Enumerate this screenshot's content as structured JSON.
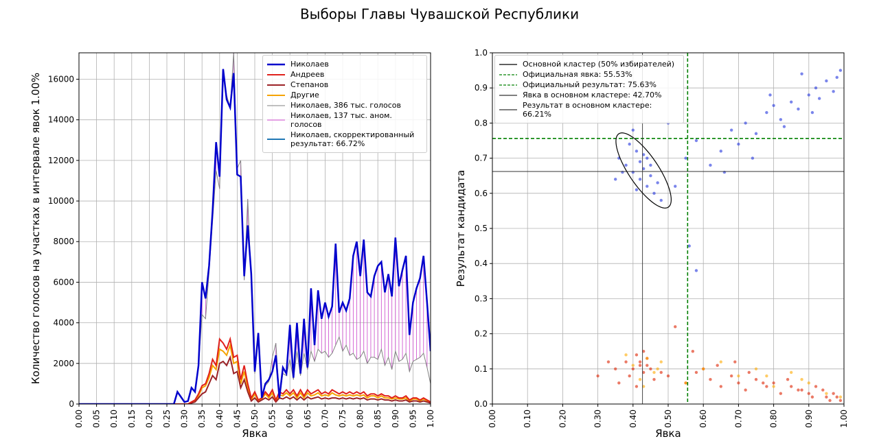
{
  "title": "Выборы Главы Чувашской Республики",
  "chart_data": [
    {
      "type": "line",
      "xlabel": "Явка",
      "ylabel": "Количество голосов на участках в интервале явок 1.00%",
      "xlim": [
        0,
        1
      ],
      "ylim": [
        0,
        17300
      ],
      "grid": true,
      "xticks": [
        {
          "value": 0,
          "label": "0.00"
        },
        {
          "value": 0.05,
          "label": "0.05"
        },
        {
          "value": 0.1,
          "label": "0.10"
        },
        {
          "value": 0.15,
          "label": "0.15"
        },
        {
          "value": 0.2,
          "label": "0.20"
        },
        {
          "value": 0.25,
          "label": "0.25"
        },
        {
          "value": 0.3,
          "label": "0.30"
        },
        {
          "value": 0.35,
          "label": "0.35"
        },
        {
          "value": 0.4,
          "label": "0.40"
        },
        {
          "value": 0.45,
          "label": "0.45"
        },
        {
          "value": 0.5,
          "label": "0.50"
        },
        {
          "value": 0.55,
          "label": "0.55"
        },
        {
          "value": 0.6,
          "label": "0.60"
        },
        {
          "value": 0.65,
          "label": "0.65"
        },
        {
          "value": 0.7,
          "label": "0.70"
        },
        {
          "value": 0.75,
          "label": "0.75"
        },
        {
          "value": 0.8,
          "label": "0.80"
        },
        {
          "value": 0.85,
          "label": "0.85"
        },
        {
          "value": 0.9,
          "label": "0.90"
        },
        {
          "value": 0.95,
          "label": "0.95"
        },
        {
          "value": 1,
          "label": "1.00"
        }
      ],
      "yticks": [
        0,
        2000,
        4000,
        6000,
        8000,
        10000,
        12000,
        14000,
        16000
      ],
      "x": [
        0,
        0.27,
        0.28,
        0.29,
        0.3,
        0.31,
        0.32,
        0.33,
        0.34,
        0.35,
        0.36,
        0.37,
        0.38,
        0.39,
        0.4,
        0.41,
        0.42,
        0.43,
        0.44,
        0.45,
        0.46,
        0.47,
        0.48,
        0.49,
        0.5,
        0.51,
        0.52,
        0.53,
        0.54,
        0.55,
        0.56,
        0.57,
        0.58,
        0.59,
        0.6,
        0.61,
        0.62,
        0.63,
        0.64,
        0.65,
        0.66,
        0.67,
        0.68,
        0.69,
        0.7,
        0.71,
        0.72,
        0.73,
        0.74,
        0.75,
        0.76,
        0.77,
        0.78,
        0.79,
        0.8,
        0.81,
        0.82,
        0.83,
        0.84,
        0.85,
        0.86,
        0.87,
        0.88,
        0.89,
        0.9,
        0.91,
        0.92,
        0.93,
        0.94,
        0.95,
        0.96,
        0.97,
        0.98,
        0.99,
        1
      ],
      "series": [
        {
          "name": "Николаев",
          "color": "#0000cc",
          "width": 2.5,
          "values": [
            0,
            0,
            600,
            350,
            100,
            150,
            800,
            600,
            1900,
            6000,
            5200,
            6800,
            9500,
            12900,
            11200,
            16500,
            15000,
            14600,
            16300,
            11300,
            11200,
            6300,
            8800,
            6400,
            1600,
            3500,
            300,
            1000,
            1200,
            1600,
            2400,
            300,
            1800,
            1500,
            3900,
            1300,
            4000,
            1500,
            4200,
            1800,
            5700,
            2900,
            5600,
            4200,
            5000,
            4300,
            4800,
            7900,
            4500,
            5000,
            4600,
            5200,
            7300,
            8000,
            6300,
            8100,
            5500,
            5300,
            6300,
            6800,
            7000,
            5500,
            6400,
            5300,
            8200,
            5800,
            6600,
            7300,
            3400,
            5000,
            5700,
            6200,
            7300,
            5000,
            2600
          ]
        },
        {
          "name": "Андреев",
          "color": "#e0201b",
          "width": 2,
          "values": [
            0,
            0,
            0,
            0,
            0,
            0,
            100,
            200,
            500,
            900,
            1000,
            1500,
            2200,
            1900,
            3200,
            3000,
            2700,
            3200,
            2300,
            2400,
            1200,
            1900,
            1000,
            300,
            600,
            200,
            300,
            600,
            400,
            700,
            200,
            600,
            500,
            700,
            500,
            700,
            400,
            700,
            400,
            700,
            500,
            600,
            700,
            500,
            600,
            500,
            700,
            600,
            500,
            600,
            500,
            600,
            500,
            600,
            500,
            600,
            400,
            500,
            500,
            400,
            500,
            400,
            400,
            300,
            400,
            300,
            300,
            400,
            200,
            300,
            300,
            200,
            300,
            200,
            100
          ]
        },
        {
          "name": "Степанов",
          "color": "#9b2226",
          "width": 2,
          "values": [
            0,
            0,
            0,
            0,
            0,
            0,
            50,
            100,
            300,
            500,
            600,
            1000,
            1400,
            1200,
            2000,
            2100,
            1900,
            2300,
            1500,
            1600,
            800,
            1200,
            600,
            150,
            300,
            100,
            200,
            300,
            200,
            350,
            100,
            300,
            250,
            350,
            250,
            350,
            200,
            350,
            200,
            350,
            250,
            300,
            350,
            250,
            300,
            250,
            300,
            300,
            250,
            300,
            250,
            300,
            250,
            300,
            250,
            300,
            200,
            250,
            250,
            200,
            250,
            200,
            200,
            150,
            200,
            150,
            150,
            200,
            100,
            150,
            150,
            100,
            150,
            100,
            50
          ]
        },
        {
          "name": "Другие",
          "color": "#f5a300",
          "width": 2,
          "values": [
            0,
            0,
            0,
            0,
            0,
            0,
            100,
            150,
            400,
            800,
            900,
            1300,
            1900,
            1700,
            2700,
            2600,
            2400,
            2900,
            2000,
            2100,
            1000,
            1600,
            800,
            200,
            500,
            150,
            250,
            500,
            300,
            550,
            150,
            450,
            400,
            550,
            400,
            550,
            300,
            550,
            300,
            550,
            400,
            450,
            550,
            400,
            450,
            400,
            550,
            450,
            400,
            450,
            400,
            450,
            400,
            450,
            400,
            450,
            300,
            400,
            400,
            300,
            400,
            300,
            300,
            250,
            300,
            250,
            250,
            300,
            150,
            250,
            250,
            150,
            250,
            150,
            80
          ]
        },
        {
          "name": "Николаев, 386 тыс. голосов",
          "color": "#808080",
          "width": 1,
          "values": [
            0,
            0,
            600,
            350,
            100,
            150,
            800,
            600,
            1900,
            4400,
            4200,
            6500,
            9000,
            11500,
            10600,
            16400,
            15200,
            14600,
            17300,
            11600,
            12000,
            6100,
            10100,
            6000,
            1500,
            3300,
            300,
            900,
            1100,
            2300,
            3000,
            300,
            1500,
            1400,
            2200,
            1200,
            2600,
            1400,
            2500,
            1700,
            2600,
            2100,
            2700,
            2500,
            2600,
            2300,
            2500,
            2900,
            3300,
            2600,
            2900,
            2400,
            2500,
            2200,
            2300,
            2600,
            2000,
            2300,
            2300,
            2200,
            2700,
            1900,
            2300,
            1700,
            2600,
            2100,
            2200,
            2500,
            1600,
            2100,
            2200,
            2300,
            2500,
            1800,
            1000
          ]
        },
        {
          "name": "Николаев, 137 тыс. аном. голосов",
          "color": "#cc44cc",
          "width": 1
        },
        {
          "name": "Николаев, скорректированный результат: 66.72%",
          "color": "#1f77b4",
          "width": 2
        }
      ]
    },
    {
      "type": "scatter",
      "xlabel": "Явка",
      "ylabel": "Результат кандидата",
      "xlim": [
        0,
        1
      ],
      "ylim": [
        0,
        1
      ],
      "grid": true,
      "xticks": [
        {
          "value": 0,
          "label": "0.00"
        },
        {
          "value": 0.1,
          "label": "0.10"
        },
        {
          "value": 0.2,
          "label": "0.20"
        },
        {
          "value": 0.3,
          "label": "0.30"
        },
        {
          "value": 0.4,
          "label": "0.40"
        },
        {
          "value": 0.5,
          "label": "0.50"
        },
        {
          "value": 0.6,
          "label": "0.60"
        },
        {
          "value": 0.7,
          "label": "0.70"
        },
        {
          "value": 0.8,
          "label": "0.80"
        },
        {
          "value": 0.9,
          "label": "0.90"
        },
        {
          "value": 1,
          "label": "1.00"
        }
      ],
      "yticks": [
        {
          "value": 0,
          "label": "0.0"
        },
        {
          "value": 0.1,
          "label": "0.1"
        },
        {
          "value": 0.2,
          "label": "0.2"
        },
        {
          "value": 0.3,
          "label": "0.3"
        },
        {
          "value": 0.4,
          "label": "0.4"
        },
        {
          "value": 0.5,
          "label": "0.5"
        },
        {
          "value": 0.6,
          "label": "0.6"
        },
        {
          "value": 0.7,
          "label": "0.7"
        },
        {
          "value": 0.8,
          "label": "0.8"
        },
        {
          "value": 0.9,
          "label": "0.9"
        },
        {
          "value": 1,
          "label": "1.0"
        }
      ],
      "series": [
        {
          "color": "#2233dd",
          "x": [
            0.36,
            0.38,
            0.4,
            0.41,
            0.42,
            0.43,
            0.44,
            0.45,
            0.46,
            0.39,
            0.42,
            0.44,
            0.47,
            0.37,
            0.41,
            0.43,
            0.45,
            0.48,
            0.35,
            0.4,
            0.5,
            0.52,
            0.55,
            0.58,
            0.62,
            0.65,
            0.68,
            0.7,
            0.72,
            0.75,
            0.78,
            0.8,
            0.82,
            0.85,
            0.87,
            0.9,
            0.92,
            0.95,
            0.97,
            0.99,
            0.74,
            0.83,
            0.88,
            0.93,
            0.98,
            0.66,
            0.79,
            0.91,
            0.56,
            0.58
          ],
          "y": [
            0.7,
            0.68,
            0.66,
            0.72,
            0.64,
            0.67,
            0.62,
            0.65,
            0.6,
            0.74,
            0.69,
            0.7,
            0.63,
            0.66,
            0.61,
            0.71,
            0.68,
            0.58,
            0.64,
            0.78,
            0.8,
            0.62,
            0.7,
            0.75,
            0.68,
            0.72,
            0.78,
            0.74,
            0.8,
            0.77,
            0.83,
            0.85,
            0.81,
            0.86,
            0.84,
            0.88,
            0.9,
            0.92,
            0.89,
            0.95,
            0.7,
            0.79,
            0.94,
            0.87,
            0.93,
            0.66,
            0.88,
            0.83,
            0.45,
            0.38
          ]
        },
        {
          "color": "#dd2200",
          "x": [
            0.38,
            0.4,
            0.41,
            0.42,
            0.43,
            0.44,
            0.45,
            0.39,
            0.42,
            0.46,
            0.36,
            0.48,
            0.41,
            0.43,
            0.44,
            0.35,
            0.5,
            0.55,
            0.58,
            0.62,
            0.65,
            0.68,
            0.7,
            0.72,
            0.75,
            0.78,
            0.8,
            0.82,
            0.85,
            0.87,
            0.9,
            0.92,
            0.95,
            0.97,
            0.99,
            0.6,
            0.73,
            0.84,
            0.94,
            0.98,
            0.3,
            0.33,
            0.52,
            0.57,
            0.64,
            0.77,
            0.88,
            0.91,
            0.96,
            0.69
          ],
          "y": [
            0.12,
            0.1,
            0.14,
            0.11,
            0.09,
            0.13,
            0.1,
            0.08,
            0.12,
            0.07,
            0.06,
            0.09,
            0.05,
            0.15,
            0.11,
            0.1,
            0.08,
            0.06,
            0.09,
            0.07,
            0.05,
            0.08,
            0.06,
            0.04,
            0.07,
            0.05,
            0.06,
            0.03,
            0.05,
            0.04,
            0.03,
            0.05,
            0.02,
            0.03,
            0.01,
            0.1,
            0.09,
            0.07,
            0.04,
            0.02,
            0.08,
            0.12,
            0.22,
            0.15,
            0.11,
            0.06,
            0.04,
            0.02,
            0.01,
            0.12
          ]
        },
        {
          "color": "#ffaa00",
          "x": [
            0.4,
            0.44,
            0.46,
            0.48,
            0.42,
            0.38,
            0.6,
            0.7,
            0.8,
            0.85,
            0.9,
            0.95,
            0.75,
            0.65,
            0.55,
            0.99,
            0.47,
            0.43,
            0.88,
            0.78
          ],
          "y": [
            0.11,
            0.13,
            0.09,
            0.12,
            0.07,
            0.14,
            0.1,
            0.08,
            0.05,
            0.09,
            0.06,
            0.03,
            0.1,
            0.12,
            0.06,
            0.02,
            0.1,
            0.05,
            0.07,
            0.08
          ]
        }
      ],
      "ellipse": {
        "label": "Основной кластер (50% избирателей)",
        "cx": 0.43,
        "cy": 0.665,
        "a": 0.126,
        "b": 0.042,
        "angle": -56,
        "color": "#000000"
      },
      "lines": [
        {
          "label": "Официальная явка: 55.53%",
          "axis": "x",
          "value": 0.5553,
          "color": "#008000",
          "dashed": true
        },
        {
          "label": "Официальный результат: 75.63%",
          "axis": "y",
          "value": 0.7563,
          "color": "#008000",
          "dashed": true
        },
        {
          "label": "Явка в основном кластере: 42.70%",
          "axis": "x",
          "value": 0.427,
          "color": "#333333",
          "dashed": false
        },
        {
          "label": "Результат в основном кластере: 66.21%",
          "axis": "y",
          "value": 0.6621,
          "color": "#333333",
          "dashed": false
        }
      ]
    }
  ]
}
